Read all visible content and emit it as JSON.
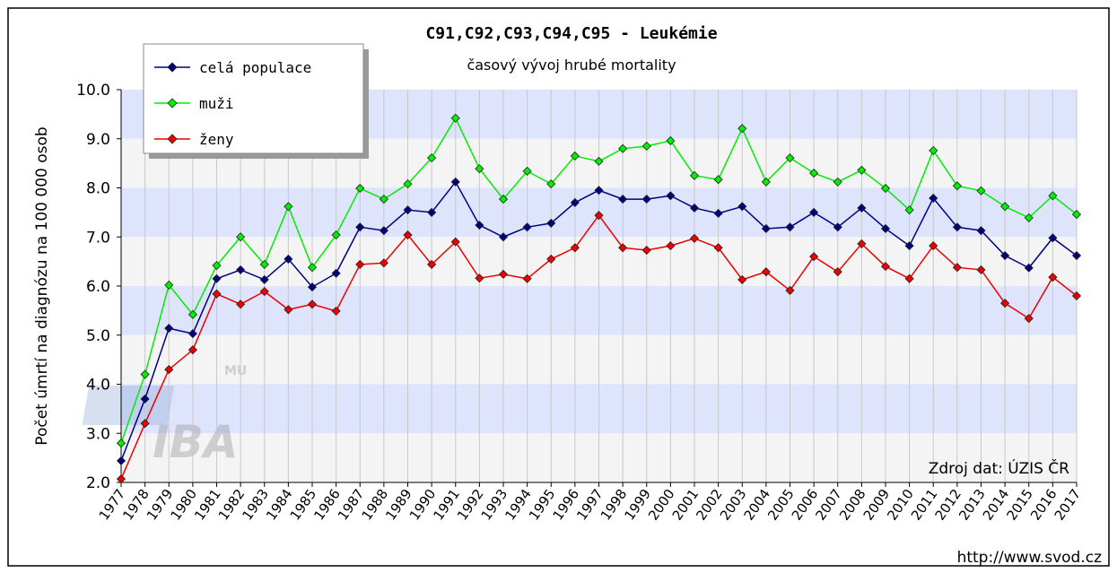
{
  "chart_data": {
    "type": "line",
    "title": "C91,C92,C93,C94,C95 - Leukémie",
    "subtitle": "časový vývoj hrubé mortality",
    "y_label": "Počet úmrtí na diagnózu na 100 000 osob",
    "source": "Zdroj dat: ÚZIS ČR",
    "url": "http://www.svod.cz",
    "logo": {
      "main": "IBA",
      "sub": "MU"
    },
    "categories": [
      "1977",
      "1978",
      "1979",
      "1980",
      "1981",
      "1982",
      "1983",
      "1984",
      "1985",
      "1986",
      "1987",
      "1988",
      "1989",
      "1990",
      "1991",
      "1992",
      "1993",
      "1994",
      "1995",
      "1996",
      "1997",
      "1998",
      "1999",
      "2000",
      "2001",
      "2002",
      "2003",
      "2004",
      "2005",
      "2006",
      "2007",
      "2008",
      "2009",
      "2010",
      "2011",
      "2012",
      "2013",
      "2014",
      "2015",
      "2016",
      "2017"
    ],
    "series": [
      {
        "name": "celá populace",
        "color": "#000080",
        "values": [
          2.44,
          3.7,
          5.14,
          5.03,
          6.15,
          6.33,
          6.13,
          6.55,
          5.98,
          6.26,
          7.2,
          7.13,
          7.55,
          7.5,
          8.12,
          7.24,
          7.0,
          7.2,
          7.28,
          7.7,
          7.95,
          7.77,
          7.77,
          7.84,
          7.59,
          7.48,
          7.62,
          7.17,
          7.2,
          7.5,
          7.2,
          7.59,
          7.17,
          6.82,
          7.79,
          7.2,
          7.13,
          6.62,
          6.37,
          6.98,
          6.62
        ]
      },
      {
        "name": "muži",
        "color": "#00ee00",
        "values": [
          2.8,
          4.2,
          6.02,
          5.42,
          6.42,
          7.0,
          6.44,
          7.62,
          6.38,
          7.04,
          7.99,
          7.77,
          8.08,
          8.61,
          9.42,
          8.39,
          7.77,
          8.34,
          8.08,
          8.65,
          8.54,
          8.8,
          8.85,
          8.96,
          8.25,
          8.17,
          9.21,
          8.12,
          8.61,
          8.3,
          8.12,
          8.36,
          7.99,
          7.55,
          8.76,
          8.04,
          7.94,
          7.62,
          7.39,
          7.84,
          7.46
        ]
      },
      {
        "name": "ženy",
        "color": "#ee0000",
        "values": [
          2.07,
          3.2,
          4.3,
          4.7,
          5.84,
          5.63,
          5.89,
          5.52,
          5.63,
          5.49,
          6.44,
          6.47,
          7.04,
          6.44,
          6.9,
          6.16,
          6.24,
          6.15,
          6.55,
          6.78,
          7.44,
          6.78,
          6.73,
          6.82,
          6.97,
          6.78,
          6.13,
          6.29,
          5.91,
          6.6,
          6.29,
          6.86,
          6.4,
          6.15,
          6.82,
          6.38,
          6.33,
          5.65,
          5.34,
          6.18,
          5.8
        ]
      }
    ],
    "ylim": [
      2,
      10
    ],
    "yticks": [
      {
        "value": 2,
        "label": "2.0"
      },
      {
        "value": 3,
        "label": "3.0"
      },
      {
        "value": 4,
        "label": "4.0"
      },
      {
        "value": 5,
        "label": "5.0"
      },
      {
        "value": 6,
        "label": "6.0"
      },
      {
        "value": 7,
        "label": "7.0"
      },
      {
        "value": 8,
        "label": "8.0"
      },
      {
        "value": 9,
        "label": "9.0"
      },
      {
        "value": 10,
        "label": "10.0"
      }
    ],
    "band_colors": [
      "#dde4fb",
      "#f4f4f4"
    ],
    "grid": true,
    "legend": "top-left"
  }
}
